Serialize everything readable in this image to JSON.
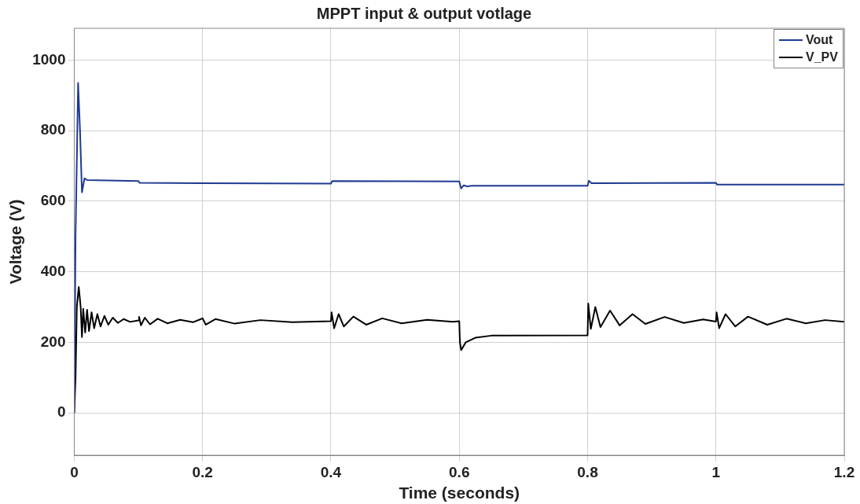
{
  "chart_data": {
    "type": "line",
    "title": "MPPT input & output votlage",
    "xlabel": "Time (seconds)",
    "ylabel": "Voltage (V)",
    "xlim": [
      0,
      1.2
    ],
    "xticks": [
      0,
      0.2,
      0.4,
      0.6,
      0.8,
      1,
      1.2
    ],
    "ylim": [
      -120,
      1090
    ],
    "yticks": [
      0,
      200,
      400,
      600,
      800,
      1000
    ],
    "grid": true,
    "legend": "top right",
    "marker": "none",
    "line_style": "solid",
    "series": [
      {
        "name": "Vout",
        "color": "#1f3a93",
        "x": [
          0,
          0.002,
          0.006,
          0.009,
          0.012,
          0.016,
          0.02,
          0.1,
          0.102,
          0.2,
          0.4,
          0.402,
          0.6,
          0.603,
          0.607,
          0.612,
          0.62,
          0.8,
          0.802,
          0.806,
          1.0,
          1.002,
          1.2
        ],
        "values": [
          0,
          500,
          935,
          800,
          625,
          665,
          660,
          657,
          652,
          651,
          650,
          657,
          656,
          636,
          645,
          642,
          644,
          644,
          658,
          651,
          652,
          647,
          647
        ]
      },
      {
        "name": "V_PV",
        "color": "#000000",
        "x": [
          0,
          0.002,
          0.004,
          0.007,
          0.01,
          0.012,
          0.014,
          0.017,
          0.02,
          0.023,
          0.027,
          0.031,
          0.036,
          0.041,
          0.047,
          0.053,
          0.06,
          0.068,
          0.077,
          0.087,
          0.1,
          0.101,
          0.104,
          0.11,
          0.118,
          0.13,
          0.145,
          0.165,
          0.185,
          0.2,
          0.205,
          0.22,
          0.25,
          0.29,
          0.34,
          0.4,
          0.401,
          0.405,
          0.412,
          0.42,
          0.435,
          0.455,
          0.48,
          0.51,
          0.55,
          0.59,
          0.6,
          0.601,
          0.603,
          0.61,
          0.625,
          0.65,
          0.8,
          0.801,
          0.805,
          0.812,
          0.82,
          0.835,
          0.85,
          0.87,
          0.89,
          0.92,
          0.95,
          0.98,
          1.0,
          1.001,
          1.005,
          1.015,
          1.03,
          1.05,
          1.08,
          1.11,
          1.14,
          1.17,
          1.2
        ],
        "values": [
          0,
          100,
          300,
          357,
          300,
          215,
          295,
          228,
          292,
          232,
          285,
          240,
          280,
          245,
          275,
          250,
          270,
          255,
          266,
          258,
          262,
          272,
          248,
          270,
          251,
          267,
          254,
          264,
          257,
          268,
          250,
          266,
          253,
          263,
          257,
          260,
          285,
          240,
          280,
          245,
          273,
          250,
          268,
          254,
          264,
          258,
          260,
          200,
          178,
          200,
          213,
          219,
          220,
          310,
          238,
          300,
          243,
          290,
          248,
          280,
          252,
          272,
          255,
          265,
          259,
          285,
          240,
          280,
          245,
          273,
          250,
          267,
          254,
          263,
          258
        ]
      }
    ]
  }
}
